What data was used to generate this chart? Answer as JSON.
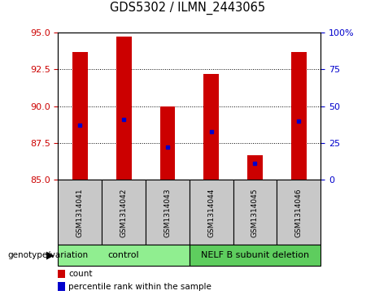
{
  "title": "GDS5302 / ILMN_2443065",
  "samples": [
    "GSM1314041",
    "GSM1314042",
    "GSM1314043",
    "GSM1314044",
    "GSM1314045",
    "GSM1314046"
  ],
  "bar_base": 85,
  "bar_tops": [
    93.7,
    94.7,
    90.0,
    92.2,
    86.7,
    93.7
  ],
  "percentile_values": [
    88.7,
    89.1,
    87.2,
    88.3,
    86.1,
    89.0
  ],
  "ylim_left": [
    85,
    95
  ],
  "ylim_right": [
    0,
    100
  ],
  "yticks_left": [
    85,
    87.5,
    90,
    92.5,
    95
  ],
  "yticks_right": [
    0,
    25,
    50,
    75,
    100
  ],
  "bar_color": "#CC0000",
  "percentile_color": "#0000CC",
  "left_tick_color": "#CC0000",
  "right_tick_color": "#0000CC",
  "sample_bg": "#C8C8C8",
  "control_bg": "#90EE90",
  "nelf_bg": "#5ECD5E",
  "genotype_label": "genotype/variation",
  "legend_count": "count",
  "legend_percentile": "percentile rank within the sample",
  "group_labels": [
    "control",
    "NELF B subunit deletion"
  ],
  "group_ranges": [
    [
      0,
      2
    ],
    [
      3,
      5
    ]
  ]
}
